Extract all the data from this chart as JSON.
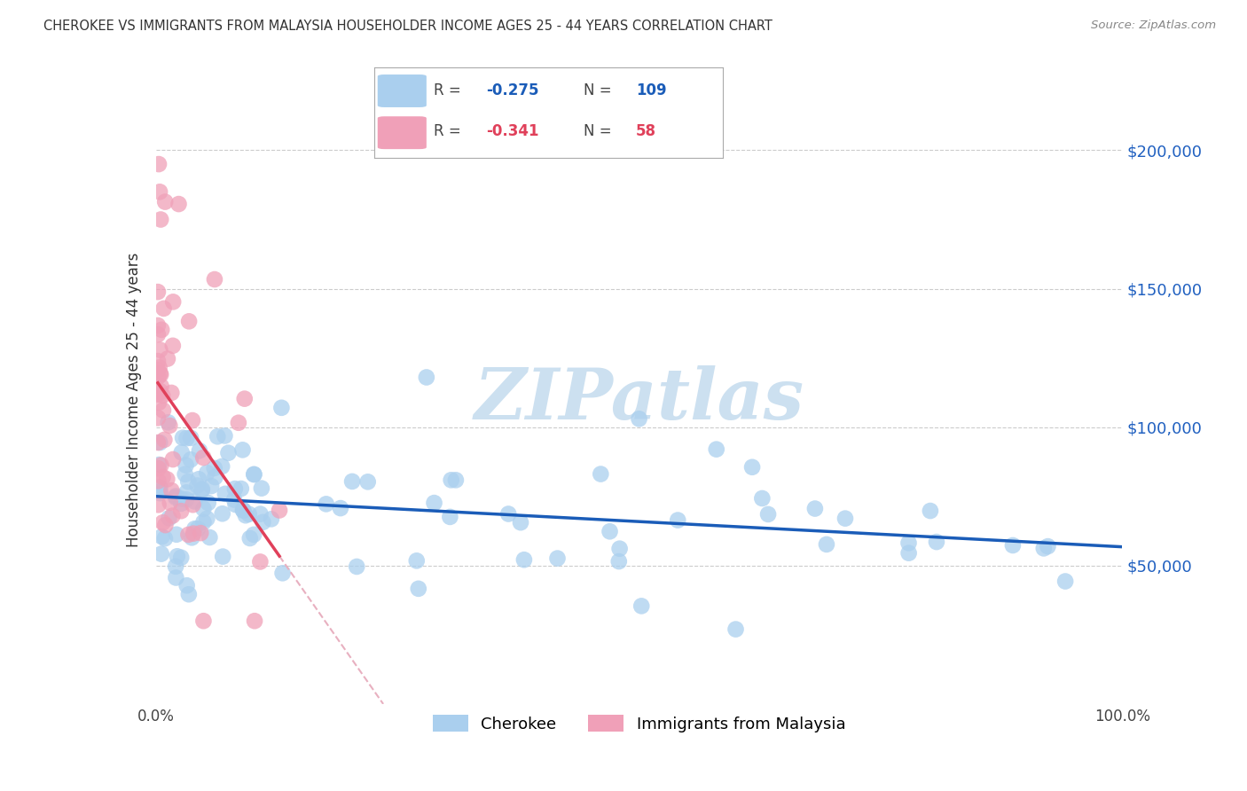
{
  "title": "CHEROKEE VS IMMIGRANTS FROM MALAYSIA HOUSEHOLDER INCOME AGES 25 - 44 YEARS CORRELATION CHART",
  "source": "Source: ZipAtlas.com",
  "ylabel": "Householder Income Ages 25 - 44 years",
  "x_min": 0.0,
  "x_max": 1.0,
  "y_min": 0,
  "y_max": 220000,
  "legend_R_cherokee": "-0.275",
  "legend_N_cherokee": "109",
  "legend_R_malaysia": "-0.341",
  "legend_N_malaysia": "58",
  "cherokee_color": "#aacfee",
  "cherokee_edge_color": "#aacfee",
  "cherokee_line_color": "#1a5cb8",
  "malaysia_color": "#f0a0b8",
  "malaysia_edge_color": "#f0a0b8",
  "malaysia_line_color": "#e0405a",
  "malaysia_dash_color": "#e8b0c0",
  "watermark_color": "#cce0f0",
  "background_color": "#ffffff",
  "grid_color": "#cccccc",
  "right_label_color": "#2060c0",
  "legend_border_color": "#aaaaaa",
  "title_color": "#333333",
  "source_color": "#888888",
  "ylabel_color": "#333333"
}
